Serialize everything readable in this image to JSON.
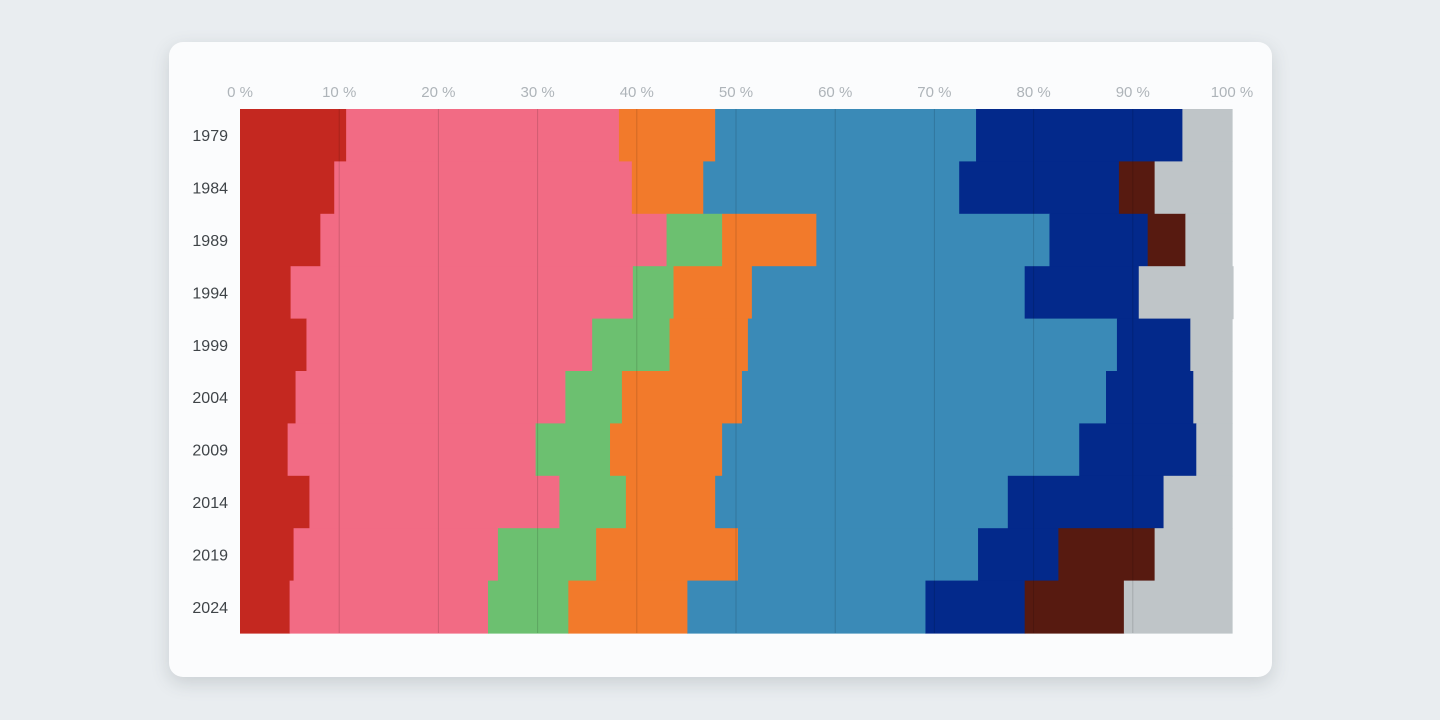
{
  "chart_data": {
    "type": "bar",
    "orientation": "horizontal",
    "stacked": "100%",
    "categories": [
      "1979",
      "1984",
      "1989",
      "1994",
      "1999",
      "2004",
      "2009",
      "2014",
      "2019",
      "2024"
    ],
    "x_ticks": [
      "0 %",
      "10 %",
      "20 %",
      "30 %",
      "40 %",
      "50 %",
      "60 %",
      "70 %",
      "80 %",
      "90 %",
      "100 %"
    ],
    "xlim": [
      0,
      100
    ],
    "grid": true,
    "legend": "none",
    "series": [
      {
        "color": "#c42820",
        "values": [
          10.7,
          9.5,
          8.1,
          5.1,
          6.7,
          5.6,
          4.8,
          7.0,
          5.4,
          5.0
        ]
      },
      {
        "color": "#f26b84",
        "values": [
          27.5,
          30.0,
          34.9,
          34.5,
          28.8,
          27.2,
          25.0,
          25.2,
          20.6,
          20.0
        ]
      },
      {
        "color": "#6cc070",
        "values": [
          0,
          0,
          5.6,
          4.1,
          7.8,
          5.7,
          7.5,
          6.7,
          9.9,
          8.1
        ]
      },
      {
        "color": "#f27a2b",
        "values": [
          9.7,
          7.2,
          9.5,
          7.9,
          7.9,
          12.1,
          11.3,
          9.0,
          14.3,
          12.0
        ]
      },
      {
        "color": "#3a8ab7",
        "values": [
          26.3,
          25.8,
          23.5,
          27.5,
          37.2,
          36.7,
          36.0,
          29.5,
          24.2,
          24.0
        ]
      },
      {
        "color": "#03298b",
        "values": [
          20.8,
          16.1,
          9.9,
          11.5,
          7.4,
          8.8,
          11.8,
          15.7,
          8.1,
          10.0
        ]
      },
      {
        "color": "#571a10",
        "values": [
          0,
          3.6,
          3.8,
          0,
          0,
          0,
          0,
          0,
          9.7,
          10.0
        ]
      },
      {
        "color": "#bfc5c8",
        "values": [
          5.0,
          7.8,
          4.7,
          9.5,
          4.2,
          3.9,
          3.6,
          6.9,
          7.8,
          10.9
        ]
      }
    ]
  }
}
